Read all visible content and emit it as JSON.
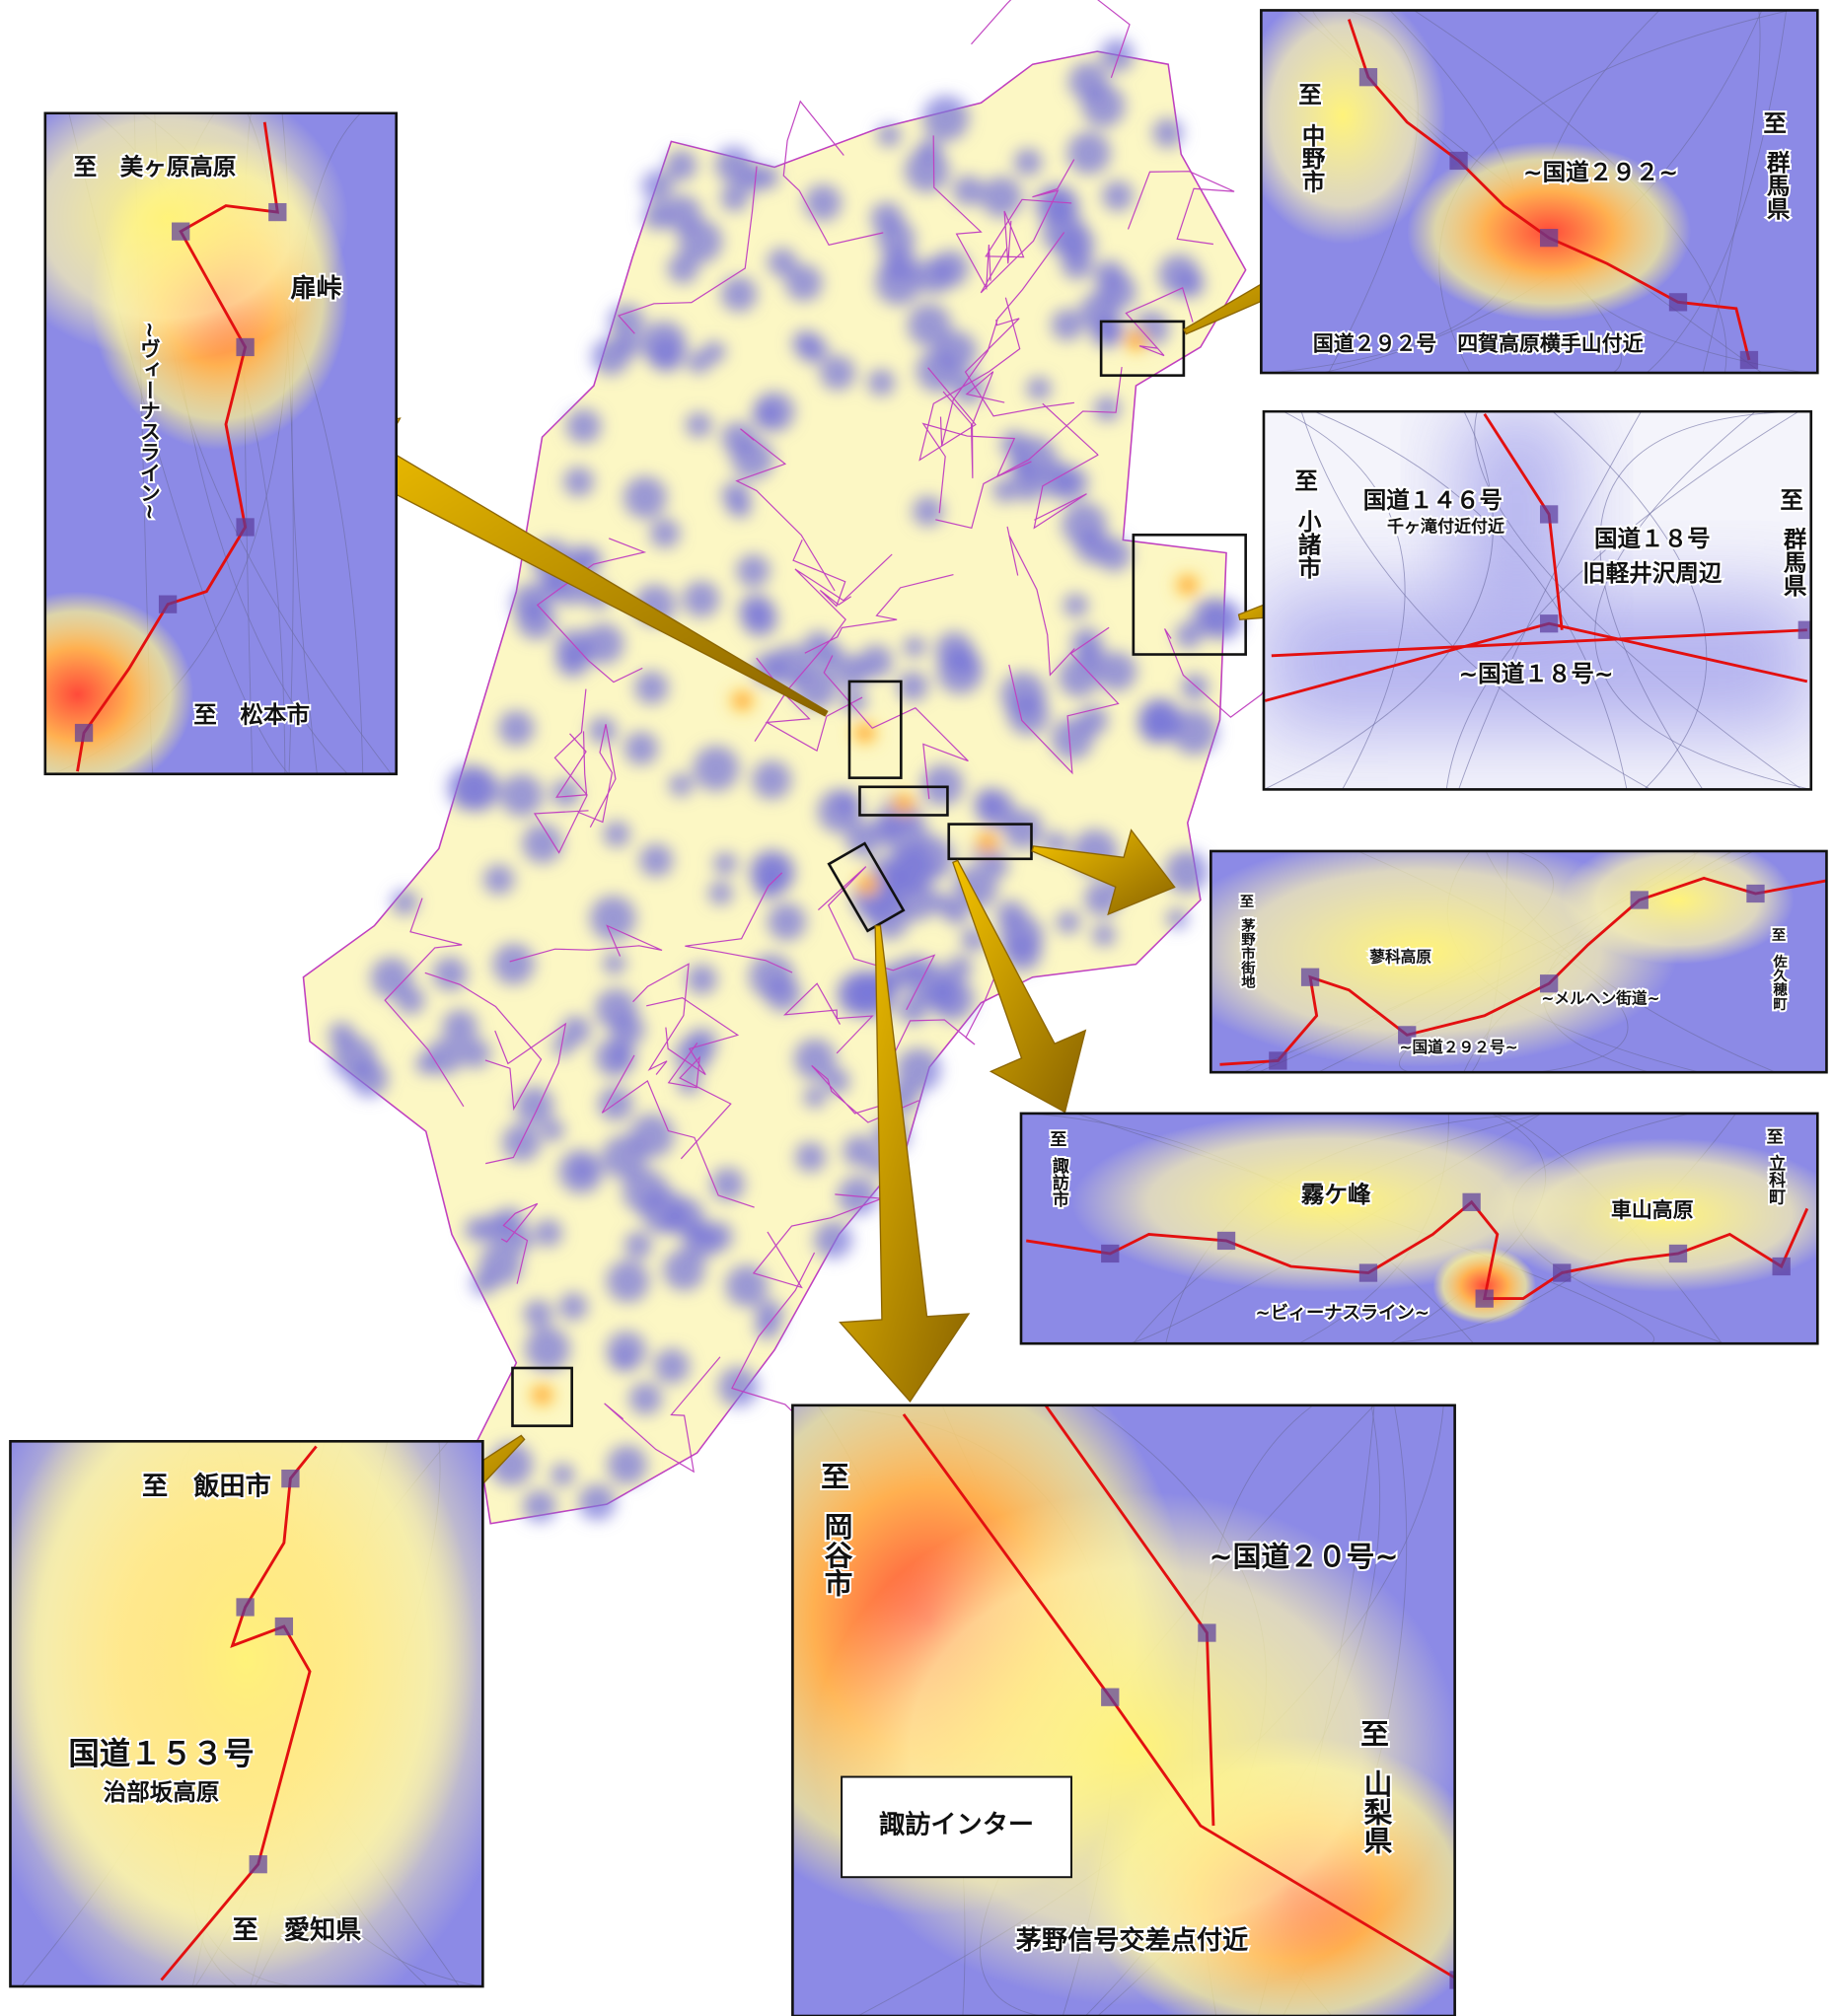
{
  "insets": [
    {
      "labels": [
        "至",
        "中野市",
        "至",
        "群馬県",
        "~国道２９２~",
        "国道２９２号　四賀高原横手山付近"
      ]
    },
    {
      "labels": [
        "至",
        "小諸市",
        "国道１４６号",
        "千ヶ滝付近付近",
        "国道１８号",
        "旧軽井沢周辺",
        "至",
        "群馬県",
        "~国道１８号~"
      ]
    },
    {
      "labels": [
        "至",
        "茅野市街地",
        "蓼科高原",
        "~メルヘン街道~",
        "~国道２９２号~",
        "至",
        "佐久穂町"
      ]
    },
    {
      "labels": [
        "至",
        "諏訪市",
        "霧ケ峰",
        "車山高原",
        "至",
        "立科町",
        "~ビィーナスライン~"
      ]
    },
    {
      "labels": [
        "至",
        "岡谷市",
        "~国道２０号~",
        "至",
        "山梨県",
        "諏訪インター",
        "茅野信号交差点付近"
      ]
    },
    {
      "labels": [
        "至　飯田市",
        "国道１５３号",
        "治部坂高原",
        "至　愛知県"
      ]
    },
    {
      "labels": [
        "至　美ヶ原高原",
        "扉峠",
        "~ヴィーナスライン~",
        "至　松本市"
      ]
    }
  ]
}
